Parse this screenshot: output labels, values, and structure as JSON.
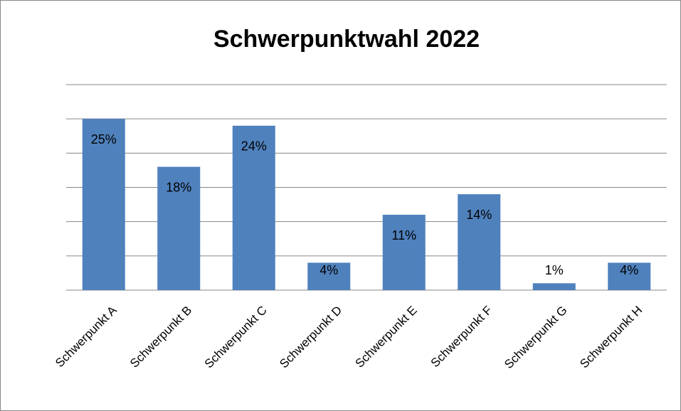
{
  "chart_data": {
    "type": "bar",
    "title": "Schwerpunktwahl 2022",
    "categories": [
      "Schwerpunkt A",
      "Schwerpunkt B",
      "Schwerpunkt C",
      "Schwerpunkt D",
      "Schwerpunkt E",
      "Schwerpunkt F",
      "Schwerpunkt G",
      "Schwerpunkt H"
    ],
    "values": [
      25,
      18,
      24,
      4,
      11,
      14,
      1,
      4
    ],
    "value_labels": [
      "25%",
      "18%",
      "24%",
      "4%",
      "11%",
      "14%",
      "1%",
      "4%"
    ],
    "color": "#4f81bd",
    "ylim": [
      0,
      30
    ],
    "yticks": [
      0,
      5,
      10,
      15,
      20,
      25,
      30
    ],
    "grid": true
  }
}
